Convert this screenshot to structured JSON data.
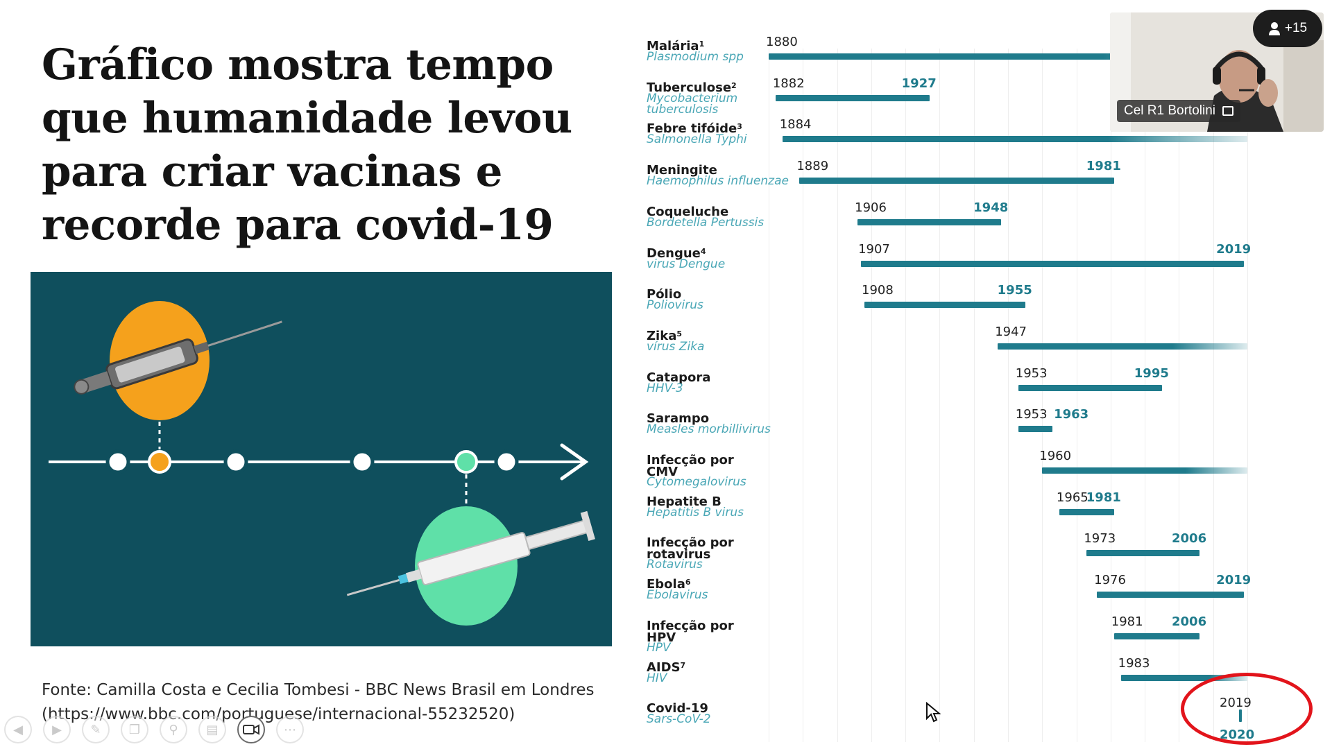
{
  "slide": {
    "title_lines": [
      "Gráfico mostra tempo",
      "que humanidade levou",
      "para criar vacinas e",
      "recorde para covid-19"
    ],
    "source_line1": "Fonte: Camilla Costa e Cecilia Tombesi  - BBC News Brasil em Londres",
    "source_line2": "(https://www.bbc.com/portuguese/internacional-55232520)"
  },
  "chart_data": {
    "type": "gantt",
    "title": "",
    "axis_range": [
      1880,
      2020
    ],
    "rows": [
      {
        "disease": "Malária",
        "note": "1",
        "pathogen": "Plasmodium spp",
        "start": 1880,
        "end": null,
        "start_label": "1880",
        "end_label": ""
      },
      {
        "disease": "Tuberculose",
        "note": "2",
        "pathogen": "Mycobacterium tuberculosis",
        "start": 1882,
        "end": 1927,
        "start_label": "1882",
        "end_label": "1927"
      },
      {
        "disease": "Febre tifóide",
        "note": "3",
        "pathogen": "Salmonella Typhi",
        "start": 1884,
        "end": null,
        "start_label": "1884",
        "end_label": ""
      },
      {
        "disease": "Meningite",
        "note": "",
        "pathogen": "Haemophilus influenzae",
        "start": 1889,
        "end": 1981,
        "start_label": "1889",
        "end_label": "1981"
      },
      {
        "disease": "Coqueluche",
        "note": "",
        "pathogen": "Bordetella Pertussis",
        "start": 1906,
        "end": 1948,
        "start_label": "1906",
        "end_label": "1948"
      },
      {
        "disease": "Dengue",
        "note": "4",
        "pathogen": "virus Dengue",
        "start": 1907,
        "end": 2019,
        "start_label": "1907",
        "end_label": "2019"
      },
      {
        "disease": "Pólio",
        "note": "",
        "pathogen": "Poliovirus",
        "start": 1908,
        "end": 1955,
        "start_label": "1908",
        "end_label": "1955"
      },
      {
        "disease": "Zika",
        "note": "5",
        "pathogen": "vírus Zika",
        "start": 1947,
        "end": null,
        "start_label": "1947",
        "end_label": ""
      },
      {
        "disease": "Catapora",
        "note": "",
        "pathogen": "HHV-3",
        "start": 1953,
        "end": 1995,
        "start_label": "1953",
        "end_label": "1995"
      },
      {
        "disease": "Sarampo",
        "note": "",
        "pathogen": "Measles morbillivirus",
        "start": 1953,
        "end": 1963,
        "start_label": "1953",
        "end_label": "1963"
      },
      {
        "disease": "Infecção por CMV",
        "note": "",
        "pathogen": "Cytomegalovirus",
        "start": 1960,
        "end": null,
        "start_label": "1960",
        "end_label": ""
      },
      {
        "disease": "Hepatite B",
        "note": "",
        "pathogen": "Hepatitis B virus",
        "start": 1965,
        "end": 1981,
        "start_label": "1965",
        "end_label": "1981"
      },
      {
        "disease": "Infecção por rotavirus",
        "note": "",
        "pathogen": "Rotavirus",
        "start": 1973,
        "end": 2006,
        "start_label": "1973",
        "end_label": "2006"
      },
      {
        "disease": "Ebola",
        "note": "6",
        "pathogen": "Ebolavirus",
        "start": 1976,
        "end": 2019,
        "start_label": "1976",
        "end_label": "2019"
      },
      {
        "disease": "Infecção por HPV",
        "note": "",
        "pathogen": "HPV",
        "start": 1981,
        "end": 2006,
        "start_label": "1981",
        "end_label": "2006"
      },
      {
        "disease": "AIDS",
        "note": "7",
        "pathogen": "HIV",
        "start": 1983,
        "end": null,
        "start_label": "1983",
        "end_label": ""
      },
      {
        "disease": "Covid-19",
        "note": "",
        "pathogen": "Sars-CoV-2",
        "start": 2019,
        "end": 2020,
        "start_label": "2019",
        "end_label": "2020"
      }
    ]
  },
  "meeting": {
    "participant_name": "Cel R1 Bortolini",
    "participants_badge": "+15",
    "toolbar_icons": [
      "previous-icon",
      "next-icon",
      "pen-icon",
      "copy-icon",
      "zoom-icon",
      "notes-icon",
      "camera-icon",
      "more-icon"
    ]
  },
  "colors": {
    "bar": "#1f7b8c",
    "pathogen": "#4aa7b6",
    "highlight": "#e2141b",
    "illustration_bg": "#0f4f5d"
  }
}
